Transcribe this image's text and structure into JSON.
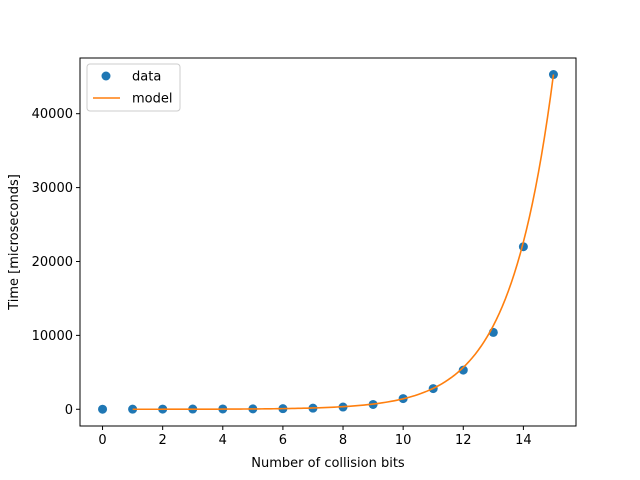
{
  "chart_data": {
    "type": "scatter",
    "title": "",
    "xlabel": "Number of collision bits",
    "ylabel": "Time [microseconds]",
    "xlim": [
      -0.75,
      15.75
    ],
    "ylim": [
      -2263,
      47537
    ],
    "xticks": [
      0,
      2,
      4,
      6,
      8,
      10,
      12,
      14
    ],
    "yticks": [
      0,
      10000,
      20000,
      30000,
      40000
    ],
    "grid": false,
    "legend_position": "top-left",
    "series": [
      {
        "name": "data",
        "kind": "scatter",
        "color": "#1f77b4",
        "x": [
          0,
          1,
          2,
          3,
          4,
          5,
          6,
          7,
          8,
          9,
          10,
          11,
          12,
          13,
          14,
          15
        ],
        "y": [
          5,
          15,
          25,
          30,
          40,
          55,
          80,
          150,
          300,
          650,
          1450,
          2800,
          5300,
          10400,
          22000,
          45300
        ]
      },
      {
        "name": "model",
        "kind": "line",
        "color": "#ff7f0e",
        "x": [
          1,
          2,
          3,
          4,
          5,
          6,
          7,
          8,
          9,
          10,
          11,
          12,
          13,
          14,
          15
        ],
        "y": [
          3,
          6,
          11,
          22,
          44,
          88,
          177,
          354,
          708,
          1415,
          2830,
          5660,
          11320,
          22640,
          45300
        ]
      }
    ]
  }
}
